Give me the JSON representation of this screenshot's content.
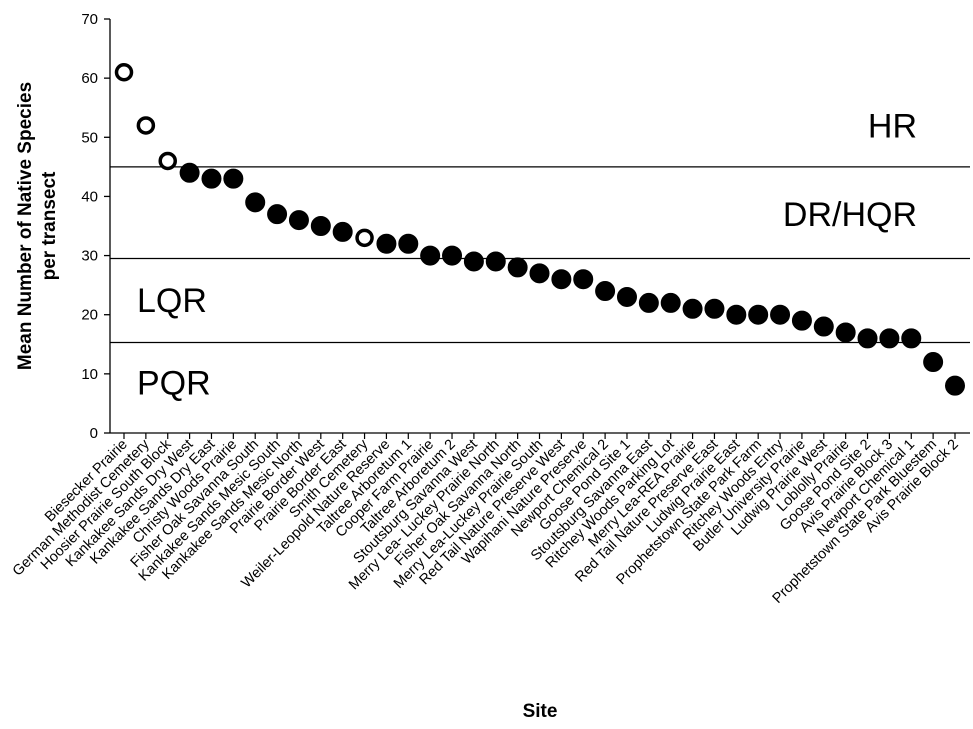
{
  "chart_data": {
    "type": "scatter",
    "xlabel": "Site",
    "ylabel": [
      "Mean Number of Native Species",
      "per transect"
    ],
    "ylim": [
      0,
      70
    ],
    "yticks": [
      0,
      10,
      20,
      30,
      40,
      50,
      60,
      70
    ],
    "grid": false,
    "categories": [
      "Biesecker Prairie",
      "German Methodist Cemetery",
      "Hoosier Prairie South Block",
      "Kankakee Sands Dry West",
      "Kankakee Sands Dry East",
      "Christy Woods Prairie",
      "Fisher Oak Savanna South",
      "Kankakee Sands Mesic South",
      "Kankakee Sands Mesic North",
      "Prairie Border West",
      "Prairie Border East",
      "Smith Cemetery",
      "Weiler-Leopold Nature Reserve",
      "Taltree Arboretum 1",
      "Cooper Farm Prairie",
      "Taltree Arboretum 2",
      "Stoutsburg Savanna West",
      "Merry Lea- Luckey Prairie North",
      "Fisher Oak Savanna North",
      "Merry Lea-Luckey Prairie South",
      "Red Tail Nature Preserve West",
      "Wapihani Nature Preserve",
      "Newport Chemical 2",
      "Goose Pond Site 1",
      "Stoutsburg Savanna East",
      "Ritchey Woods Parking Lot",
      "Merry Lea-REA Prairie",
      "Red Tail Nature Preserve East",
      "Ludwig Prairie East",
      "Prophetstown State Park Farm",
      "Ritchey Woods Entry",
      "Butler University Prairie",
      "Ludwig Prairie West",
      "Loblolly Prairie",
      "Goose Pond Site 2",
      "Avis Prairie Block 3",
      "Newport Chemical 1",
      "Prophetstown State Park Bluestem",
      "Avis Prairie Block 2"
    ],
    "values": [
      61,
      52,
      46,
      44,
      43,
      43,
      39,
      37,
      36,
      35,
      34,
      33,
      32,
      32,
      30,
      30,
      29,
      29,
      28,
      27,
      26,
      26,
      24,
      23,
      22,
      22,
      21,
      21,
      20,
      20,
      20,
      19,
      18,
      17,
      16,
      16,
      16,
      12,
      8
    ],
    "open_marker": [
      true,
      true,
      true,
      false,
      false,
      false,
      false,
      false,
      false,
      false,
      false,
      true,
      false,
      false,
      false,
      false,
      false,
      false,
      false,
      false,
      false,
      false,
      false,
      false,
      false,
      false,
      false,
      false,
      false,
      false,
      false,
      false,
      false,
      false,
      false,
      false,
      false,
      false,
      false
    ],
    "thresholds": [
      {
        "y": 45
      },
      {
        "y": 29.5
      },
      {
        "y": 15.3
      }
    ],
    "zones": [
      {
        "label": "HR",
        "y": 52
      },
      {
        "label": "DR/HQR",
        "y": 37
      },
      {
        "label": "LQR",
        "y": 22.5
      },
      {
        "label": "PQR",
        "y": 8.5
      }
    ]
  }
}
